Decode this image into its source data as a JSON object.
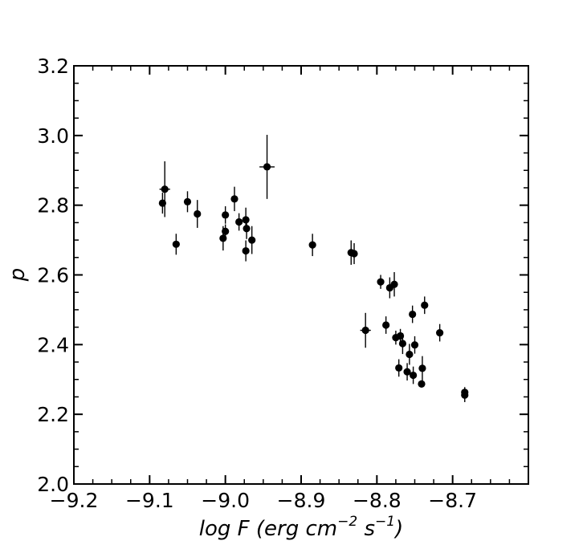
{
  "chart_data": {
    "type": "scatter",
    "xlabel": "log F (erg cm",
    "xlabel_sup1": "−2",
    "xlabel_mid": " s",
    "xlabel_sup2": "−1",
    "xlabel_end": ")",
    "ylabel": "p",
    "xlim": [
      -9.2,
      -8.6
    ],
    "ylim": [
      2.0,
      3.2
    ],
    "x_ticks": [
      -9.2,
      -9.1,
      -9.0,
      -8.9,
      -8.8,
      -8.7
    ],
    "x_tick_labels": [
      "−9.2",
      "−9.1",
      "−9.0",
      "−8.9",
      "−8.8",
      "−8.7"
    ],
    "y_ticks": [
      2.0,
      2.2,
      2.4,
      2.6,
      2.8,
      3.0,
      3.2
    ],
    "y_tick_labels": [
      "2.0",
      "2.2",
      "2.4",
      "2.6",
      "2.8",
      "3.0",
      "3.2"
    ],
    "grid": false,
    "marker_color": "#000000",
    "points": [
      {
        "x": -9.083,
        "y": 2.806,
        "yerr": 0.03,
        "xerr": 0.0
      },
      {
        "x": -9.08,
        "y": 2.846,
        "yerr": 0.08,
        "xerr": 0.007
      },
      {
        "x": -9.065,
        "y": 2.688,
        "yerr": 0.03,
        "xerr": 0.0
      },
      {
        "x": -9.05,
        "y": 2.81,
        "yerr": 0.03,
        "xerr": 0.0
      },
      {
        "x": -9.037,
        "y": 2.775,
        "yerr": 0.04,
        "xerr": 0.0
      },
      {
        "x": -9.003,
        "y": 2.705,
        "yerr": 0.035,
        "xerr": 0.0
      },
      {
        "x": -9.0,
        "y": 2.772,
        "yerr": 0.025,
        "xerr": 0.0
      },
      {
        "x": -9.0,
        "y": 2.725,
        "yerr": 0.02,
        "xerr": 0.0
      },
      {
        "x": -8.988,
        "y": 2.818,
        "yerr": 0.035,
        "xerr": 0.0
      },
      {
        "x": -8.982,
        "y": 2.752,
        "yerr": 0.025,
        "xerr": 0.0
      },
      {
        "x": -8.973,
        "y": 2.758,
        "yerr": 0.035,
        "xerr": 0.0
      },
      {
        "x": -8.972,
        "y": 2.733,
        "yerr": 0.03,
        "xerr": 0.0
      },
      {
        "x": -8.973,
        "y": 2.669,
        "yerr": 0.03,
        "xerr": 0.0
      },
      {
        "x": -8.965,
        "y": 2.7,
        "yerr": 0.04,
        "xerr": 0.0
      },
      {
        "x": -8.945,
        "y": 2.91,
        "yerr": 0.092,
        "xerr": 0.01
      },
      {
        "x": -8.885,
        "y": 2.686,
        "yerr": 0.032,
        "xerr": 0.0
      },
      {
        "x": -8.834,
        "y": 2.664,
        "yerr": 0.035,
        "xerr": 0.0
      },
      {
        "x": -8.83,
        "y": 2.661,
        "yerr": 0.03,
        "xerr": 0.0
      },
      {
        "x": -8.815,
        "y": 2.441,
        "yerr": 0.05,
        "xerr": 0.007
      },
      {
        "x": -8.795,
        "y": 2.58,
        "yerr": 0.02,
        "xerr": 0.0
      },
      {
        "x": -8.788,
        "y": 2.456,
        "yerr": 0.025,
        "xerr": 0.0
      },
      {
        "x": -8.783,
        "y": 2.563,
        "yerr": 0.03,
        "xerr": 0.0
      },
      {
        "x": -8.777,
        "y": 2.573,
        "yerr": 0.035,
        "xerr": 0.0
      },
      {
        "x": -8.775,
        "y": 2.42,
        "yerr": 0.02,
        "xerr": 0.0
      },
      {
        "x": -8.771,
        "y": 2.333,
        "yerr": 0.025,
        "xerr": 0.0
      },
      {
        "x": -8.769,
        "y": 2.425,
        "yerr": 0.02,
        "xerr": 0.0
      },
      {
        "x": -8.766,
        "y": 2.403,
        "yerr": 0.03,
        "xerr": 0.0
      },
      {
        "x": -8.76,
        "y": 2.322,
        "yerr": 0.025,
        "xerr": 0.0
      },
      {
        "x": -8.757,
        "y": 2.372,
        "yerr": 0.03,
        "xerr": 0.0
      },
      {
        "x": -8.753,
        "y": 2.487,
        "yerr": 0.025,
        "xerr": 0.0
      },
      {
        "x": -8.752,
        "y": 2.312,
        "yerr": 0.025,
        "xerr": 0.0
      },
      {
        "x": -8.75,
        "y": 2.399,
        "yerr": 0.025,
        "xerr": 0.0
      },
      {
        "x": -8.741,
        "y": 2.287,
        "yerr": 0.01,
        "xerr": 0.0
      },
      {
        "x": -8.74,
        "y": 2.332,
        "yerr": 0.035,
        "xerr": 0.0
      },
      {
        "x": -8.737,
        "y": 2.513,
        "yerr": 0.025,
        "xerr": 0.0
      },
      {
        "x": -8.717,
        "y": 2.434,
        "yerr": 0.025,
        "xerr": 0.0
      },
      {
        "x": -8.684,
        "y": 2.263,
        "yerr": 0.015,
        "xerr": 0.0
      },
      {
        "x": -8.684,
        "y": 2.255,
        "yerr": 0.02,
        "xerr": 0.0
      }
    ]
  }
}
